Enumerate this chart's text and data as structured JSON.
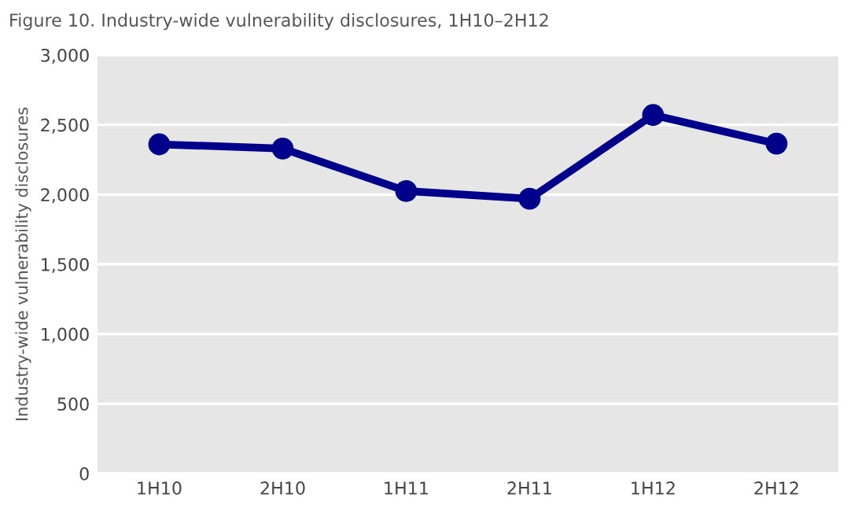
{
  "chart_data": {
    "type": "line",
    "title": "Figure 10. Industry-wide vulnerability disclosures, 1H10–2H12",
    "ylabel": "Industry-wide vulnerability disclosures",
    "categories": [
      "1H10",
      "2H10",
      "1H11",
      "2H11",
      "1H12",
      "2H12"
    ],
    "series": [
      {
        "color": "#00008b",
        "values": [
          2360,
          2330,
          2025,
          1970,
          2570,
          2365
        ]
      }
    ],
    "ylim": [
      0,
      3000
    ],
    "yticks": [
      {
        "value": 0,
        "label": "0"
      },
      {
        "value": 500,
        "label": "500"
      },
      {
        "value": 1000,
        "label": "1,000"
      },
      {
        "value": 1500,
        "label": "1,500"
      },
      {
        "value": 2000,
        "label": "2,000"
      },
      {
        "value": 2500,
        "label": "2,500"
      },
      {
        "value": 3000,
        "label": "3,000"
      }
    ],
    "grid": "y",
    "marker": "circle",
    "line_style": "solid"
  }
}
